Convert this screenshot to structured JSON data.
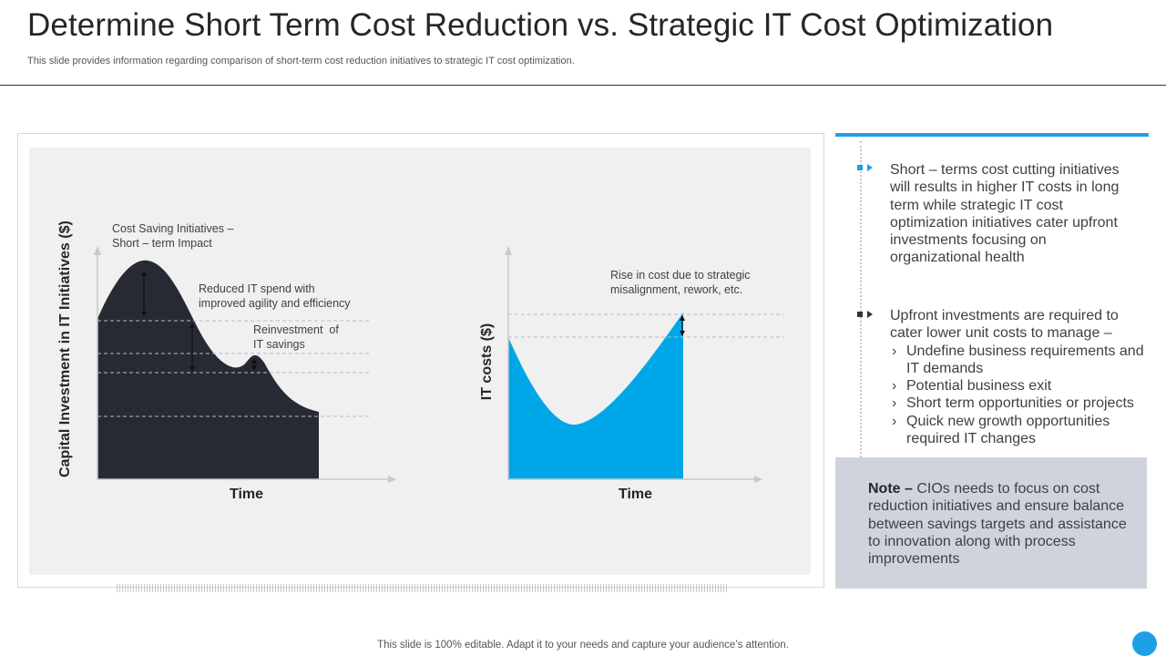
{
  "header": {
    "title": "Determine Short Term Cost Reduction vs. Strategic IT Cost Optimization",
    "subtitle": "This slide provides information regarding comparison of  short-term cost reduction initiatives to strategic IT cost optimization."
  },
  "colors": {
    "accent": "#1DA1E6",
    "dark_area": "#272A33",
    "chart_bg": "#F0F0F0",
    "note_bg": "#CFD3DC"
  },
  "left_chart": {
    "ylabel": "Capital Investment in IT Initiatives  ($)",
    "xlabel": "Time",
    "annotations": {
      "cost_saving": "Cost Saving Initiatives –\nShort – term Impact",
      "reduced_spend": "Reduced IT spend with\nimproved agility and efficiency",
      "reinvestment": "Reinvestment  of\nIT savings"
    }
  },
  "right_chart": {
    "ylabel": "IT costs ($)",
    "xlabel": "Time",
    "annotations": {
      "rise_in_cost": "Rise in cost due to strategic\nmisalignment, rework, etc."
    }
  },
  "panel": {
    "point1": "Short – terms cost cutting initiatives will results in higher IT costs in long term while strategic IT cost optimization initiatives cater upfront investments focusing on organizational health",
    "point2_intro": "Upfront investments are required to cater lower unit costs to manage –",
    "point2_items": [
      "Undefine business requirements and IT demands",
      "Potential business exit",
      "Short term opportunities or projects",
      "Quick new growth opportunities required IT changes"
    ],
    "note_label": "Note –",
    "note_text": " CIOs needs to focus on cost reduction initiatives and ensure balance between savings targets and assistance to innovation along with process improvements"
  },
  "footer": {
    "text": "This slide is 100% editable. Adapt it to your needs and capture your audience’s attention."
  }
}
